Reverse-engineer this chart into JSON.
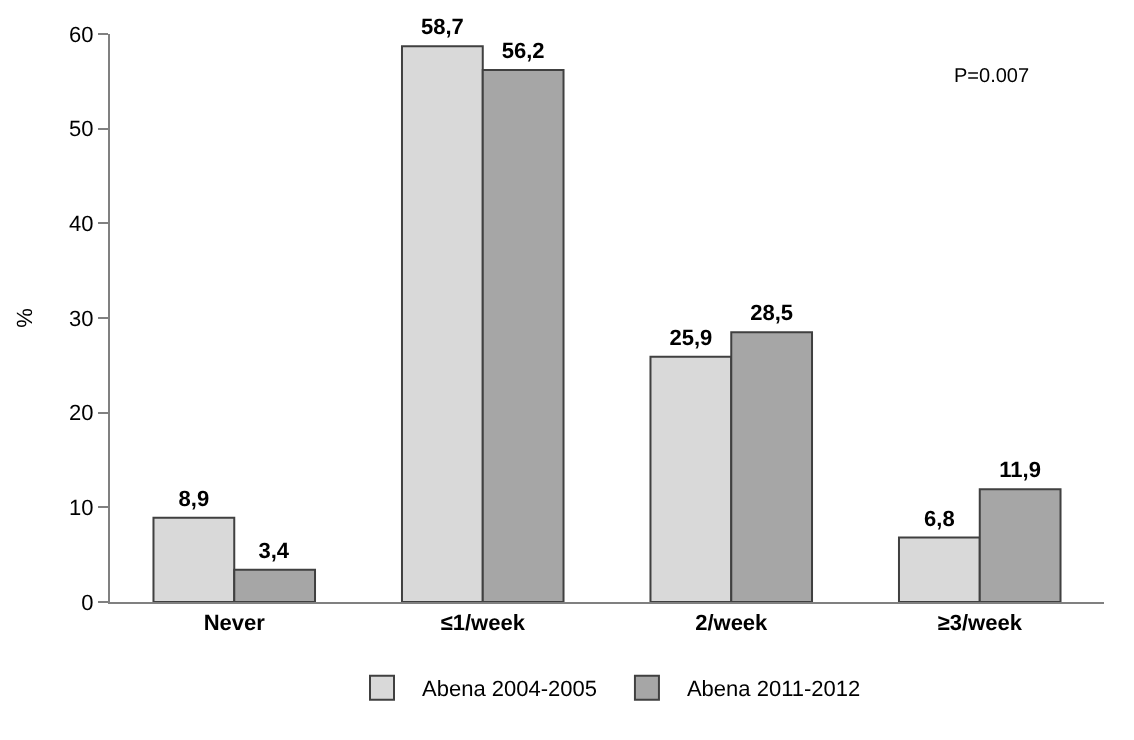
{
  "chart_data": {
    "type": "bar",
    "ylabel": "%",
    "categories": [
      "Never",
      "≤1/week",
      "2/week",
      "≥3/week"
    ],
    "series": [
      {
        "name": "Abena 2004-2005",
        "color": "#d9d9d9",
        "values": [
          8.9,
          58.7,
          25.9,
          6.8
        ],
        "value_labels": [
          "8,9",
          "58,7",
          "25,9",
          "6,8"
        ]
      },
      {
        "name": "Abena 2011-2012",
        "color": "#a6a6a6",
        "values": [
          3.4,
          56.2,
          28.5,
          11.9
        ],
        "value_labels": [
          "3,4",
          "56,2",
          "28,5",
          "11,9"
        ]
      }
    ],
    "ylim": [
      0,
      60
    ],
    "yticks": [
      0,
      10,
      20,
      30,
      40,
      50,
      60
    ],
    "legend": "bottom",
    "annotations": [
      "P=0.007"
    ]
  }
}
